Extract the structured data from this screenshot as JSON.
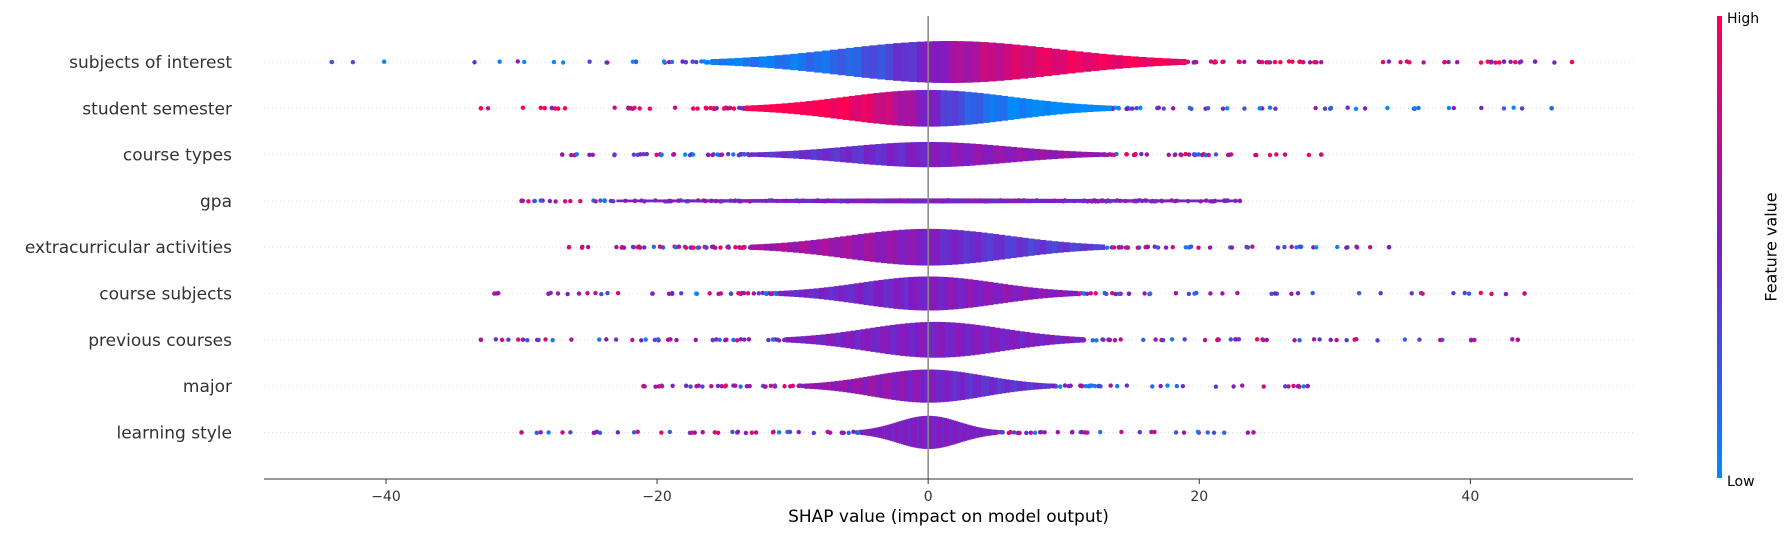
{
  "chart_data": {
    "type": "violin-summary",
    "xlabel": "SHAP value (impact on model output)",
    "xlim": [
      -49,
      52
    ],
    "xticks": [
      "−40",
      "−20",
      "0",
      "20",
      "40"
    ],
    "xtick_values": [
      -40,
      -20,
      0,
      20,
      40
    ],
    "colorbar": {
      "title": "Feature value",
      "high": "High",
      "low": "Low",
      "low_color": "#008bfb",
      "mid_color": "#7c1dc4",
      "high_color": "#ff0052"
    },
    "grid": "dotted horizontal per feature",
    "features": [
      {
        "name": "subjects of interest",
        "range": [
          -44,
          47.5
        ],
        "spread": 17.5,
        "amp": 0.9,
        "center": 1.5,
        "bias": 0.45,
        "min_red": -46,
        "max_red": 48
      },
      {
        "name": "student semester",
        "range": [
          -33,
          46
        ],
        "spread": 13.5,
        "amp": 0.78,
        "center": 0,
        "bias": -0.55,
        "min_red": 32,
        "max_red": 34
      },
      {
        "name": "course types",
        "range": [
          -27,
          29
        ],
        "spread": 13,
        "amp": 0.52,
        "center": 0,
        "bias": 0.1,
        "min_red": -10,
        "max_red": 10
      },
      {
        "name": "gpa",
        "range": [
          -30,
          23
        ],
        "spread": 23,
        "amp": 0.06,
        "center": 0,
        "bias": 0.0,
        "min_red": -10,
        "max_red": 10
      },
      {
        "name": "extracurricular activities",
        "range": [
          -26.5,
          34
        ],
        "spread": 13,
        "amp": 0.78,
        "center": 0,
        "bias": -0.15,
        "min_red": -10,
        "max_red": 10
      },
      {
        "name": "course subjects",
        "range": [
          -32,
          44
        ],
        "spread": 11,
        "amp": 0.72,
        "center": 0,
        "bias": 0.05,
        "min_red": -10,
        "max_red": 10
      },
      {
        "name": "previous courses",
        "range": [
          -33,
          43.5
        ],
        "spread": 11,
        "amp": 0.76,
        "center": 0.5,
        "bias": 0.0,
        "min_red": -10,
        "max_red": 10
      },
      {
        "name": "major",
        "range": [
          -21,
          28
        ],
        "spread": 9,
        "amp": 0.7,
        "center": 0,
        "bias": -0.1,
        "min_red": -10,
        "max_red": 10
      },
      {
        "name": "learning style",
        "range": [
          -30,
          24
        ],
        "spread": 5,
        "amp": 0.7,
        "center": 0,
        "bias": 0.0,
        "min_red": -10,
        "max_red": 10
      }
    ]
  }
}
